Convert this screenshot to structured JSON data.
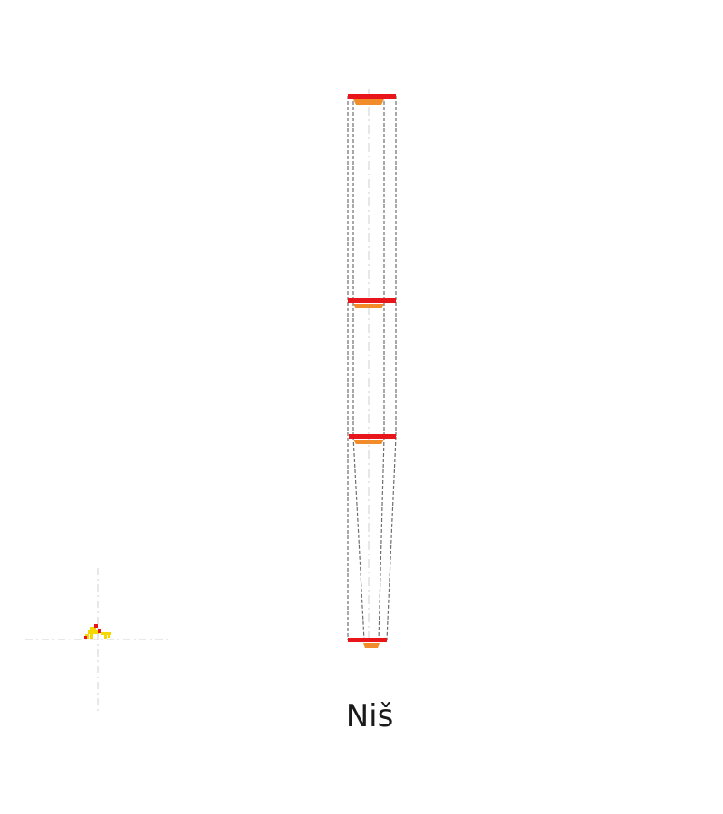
{
  "label": "Niš",
  "colors": {
    "background": "#ffffff",
    "bar_red": "#e8151b",
    "bar_orange": "#f28b2a",
    "outline": "#6e6e6e",
    "axis": "#c8c8c8",
    "marker_yellow": "#f5d800",
    "marker_red": "#e8151b"
  },
  "icons": {
    "marker": "small-yellow-red-cluster-icon"
  }
}
